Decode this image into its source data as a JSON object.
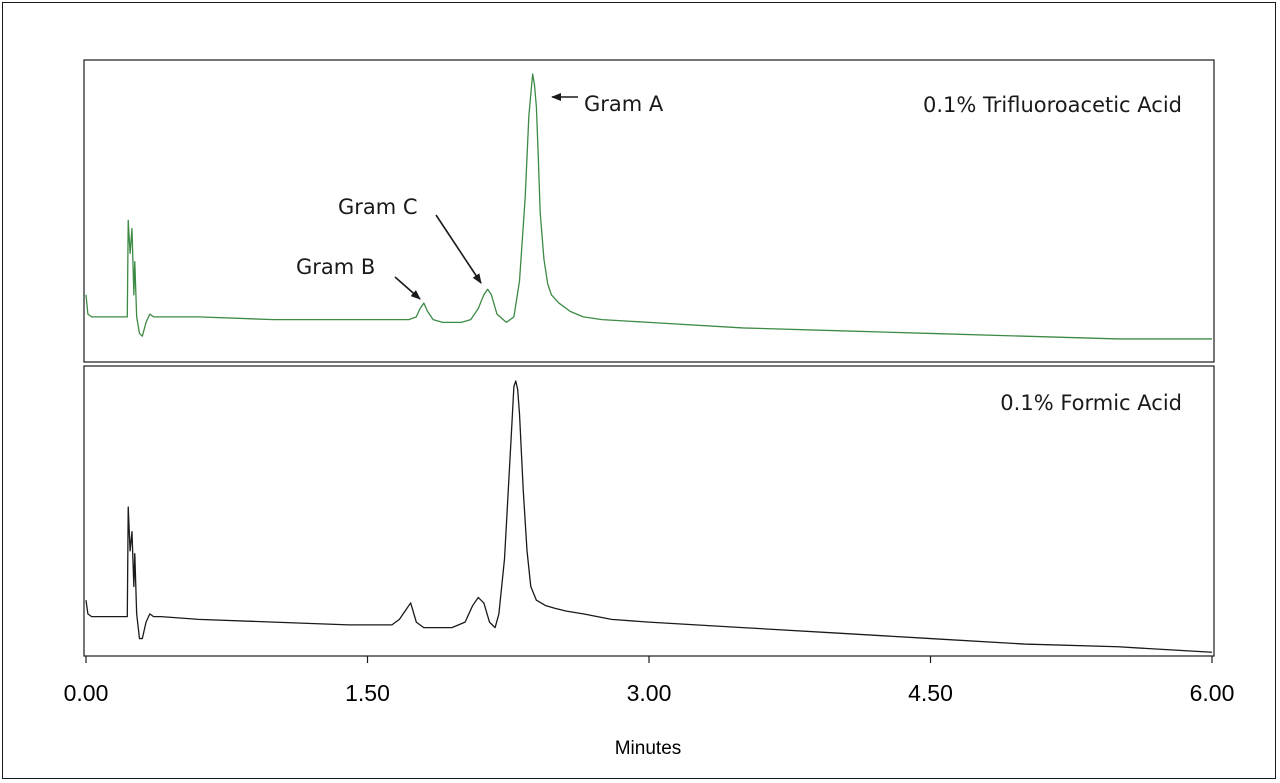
{
  "chart_data": {
    "type": "line",
    "xlabel": "Minutes",
    "xlim": [
      0,
      6
    ],
    "x_ticks": [
      "0.00",
      "1.50",
      "3.00",
      "4.50",
      "6.00"
    ],
    "x_tick_values": [
      0,
      1.5,
      3.0,
      4.5,
      6.0
    ],
    "grid": false,
    "panels": [
      {
        "label": "0.1% Trifluoroacetic Acid",
        "color": "#3d8a45",
        "ylim": [
          0,
          1
        ],
        "series": [
          {
            "x": [
              0.0,
              0.01,
              0.03,
              0.2,
              0.22,
              0.225,
              0.235,
              0.245,
              0.255,
              0.26,
              0.27,
              0.285,
              0.3,
              0.32,
              0.34,
              0.36,
              0.4,
              0.6,
              1.0,
              1.4,
              1.72,
              1.76,
              1.78,
              1.8,
              1.82,
              1.85,
              1.9,
              2.0,
              2.05,
              2.09,
              2.12,
              2.14,
              2.16,
              2.19,
              2.24,
              2.28,
              2.31,
              2.34,
              2.36,
              2.38,
              2.39,
              2.4,
              2.41,
              2.42,
              2.44,
              2.46,
              2.48,
              2.52,
              2.58,
              2.65,
              2.75,
              3.0,
              3.5,
              4.0,
              4.5,
              5.0,
              5.5,
              6.0
            ],
            "y": [
              0.2,
              0.13,
              0.12,
              0.12,
              0.12,
              0.47,
              0.35,
              0.44,
              0.2,
              0.32,
              0.12,
              0.06,
              0.05,
              0.1,
              0.13,
              0.12,
              0.12,
              0.12,
              0.11,
              0.11,
              0.11,
              0.12,
              0.15,
              0.17,
              0.14,
              0.11,
              0.1,
              0.1,
              0.11,
              0.15,
              0.2,
              0.22,
              0.2,
              0.13,
              0.1,
              0.12,
              0.25,
              0.55,
              0.85,
              1.0,
              0.96,
              0.88,
              0.7,
              0.5,
              0.33,
              0.24,
              0.2,
              0.17,
              0.14,
              0.12,
              0.11,
              0.1,
              0.08,
              0.07,
              0.06,
              0.05,
              0.04,
              0.04
            ]
          }
        ],
        "annotations": [
          {
            "text": "Gram A",
            "target": {
              "x": 2.43,
              "y": 0.98
            }
          },
          {
            "text": "Gram C",
            "target": {
              "x": 2.1,
              "y": 0.25
            }
          },
          {
            "text": "Gram B",
            "target": {
              "x": 1.8,
              "y": 0.22
            }
          }
        ]
      },
      {
        "label": "0.1% Formic Acid",
        "color": "#1a1a1a",
        "ylim": [
          0,
          1
        ],
        "series": [
          {
            "x": [
              0.0,
              0.01,
              0.03,
              0.2,
              0.22,
              0.225,
              0.235,
              0.245,
              0.255,
              0.26,
              0.27,
              0.285,
              0.3,
              0.32,
              0.34,
              0.36,
              0.4,
              0.6,
              1.0,
              1.4,
              1.63,
              1.67,
              1.7,
              1.73,
              1.76,
              1.8,
              1.95,
              2.02,
              2.06,
              2.09,
              2.12,
              2.15,
              2.18,
              2.2,
              2.23,
              2.25,
              2.27,
              2.28,
              2.29,
              2.3,
              2.31,
              2.33,
              2.35,
              2.37,
              2.4,
              2.45,
              2.5,
              2.56,
              2.65,
              2.8,
              3.0,
              3.5,
              4.0,
              4.5,
              5.0,
              5.5,
              6.0
            ],
            "y": [
              0.2,
              0.15,
              0.14,
              0.14,
              0.14,
              0.54,
              0.38,
              0.45,
              0.25,
              0.37,
              0.15,
              0.06,
              0.06,
              0.12,
              0.15,
              0.14,
              0.14,
              0.13,
              0.12,
              0.11,
              0.11,
              0.13,
              0.16,
              0.19,
              0.12,
              0.1,
              0.1,
              0.12,
              0.18,
              0.21,
              0.19,
              0.12,
              0.1,
              0.15,
              0.35,
              0.6,
              0.85,
              0.98,
              1.0,
              0.97,
              0.88,
              0.6,
              0.38,
              0.25,
              0.2,
              0.18,
              0.17,
              0.16,
              0.15,
              0.13,
              0.12,
              0.1,
              0.08,
              0.06,
              0.04,
              0.03,
              0.01
            ]
          }
        ],
        "annotations": []
      }
    ]
  }
}
